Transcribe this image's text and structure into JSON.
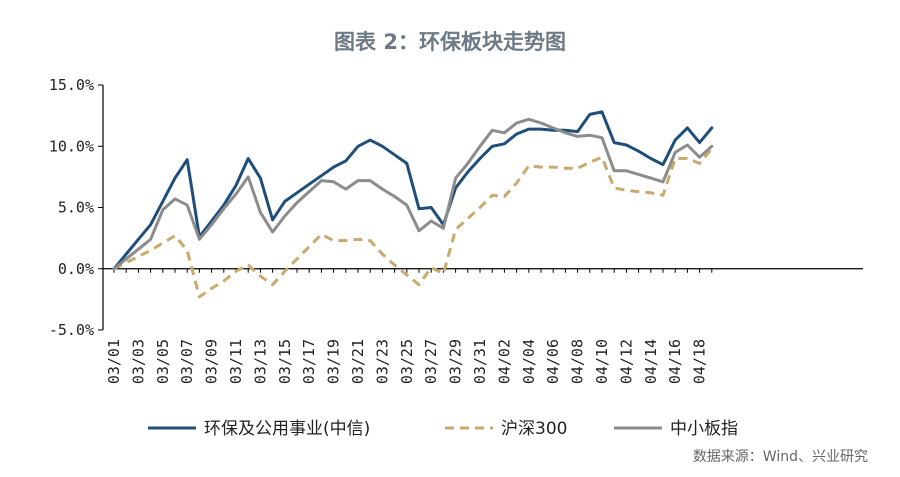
{
  "chart_data": {
    "type": "line",
    "title": "图表 2：环保板块走势图",
    "source": "数据来源：Wind、兴业研究",
    "ylim": [
      -5,
      15
    ],
    "yticks": [
      -5,
      0,
      5,
      10,
      15
    ],
    "ytick_labels": [
      "-5.0%",
      "0.0%",
      "5.0%",
      "10.0%",
      "15.0%"
    ],
    "x": [
      "03/01",
      "03/02",
      "03/03",
      "03/04",
      "03/05",
      "03/06",
      "03/07",
      "03/08",
      "03/09",
      "03/10",
      "03/11",
      "03/12",
      "03/13",
      "03/14",
      "03/15",
      "03/16",
      "03/17",
      "03/18",
      "03/19",
      "03/20",
      "03/21",
      "03/22",
      "03/23",
      "03/24",
      "03/25",
      "03/26",
      "03/27",
      "03/28",
      "03/29",
      "03/30",
      "03/31",
      "04/01",
      "04/02",
      "04/03",
      "04/04",
      "04/05",
      "04/06",
      "04/07",
      "04/08",
      "04/09",
      "04/10",
      "04/11",
      "04/12",
      "04/13",
      "04/14",
      "04/15",
      "04/16",
      "04/17",
      "04/18",
      "04/19"
    ],
    "x_tick_labels": [
      "03/01",
      "03/03",
      "03/05",
      "03/07",
      "03/09",
      "03/11",
      "03/13",
      "03/15",
      "03/17",
      "03/19",
      "03/21",
      "03/23",
      "03/25",
      "03/27",
      "03/29",
      "03/31",
      "04/02",
      "04/04",
      "04/06",
      "04/08",
      "04/10",
      "04/12",
      "04/14",
      "04/16",
      "04/18"
    ],
    "series": [
      {
        "name": "环保及公用事业(中信)",
        "color": "#1f4e79",
        "dash": "solid",
        "values": [
          0.0,
          1.2,
          2.4,
          3.6,
          5.5,
          7.4,
          8.9,
          2.6,
          3.9,
          5.2,
          6.8,
          9.0,
          7.4,
          4.0,
          5.5,
          6.2,
          6.9,
          7.6,
          8.3,
          8.8,
          10.0,
          10.5,
          10.0,
          9.3,
          8.6,
          4.9,
          5.0,
          3.6,
          6.6,
          7.9,
          9.0,
          10.0,
          10.2,
          11.0,
          11.4,
          11.4,
          11.3,
          11.3,
          11.2,
          12.6,
          12.8,
          10.3,
          10.1,
          9.6,
          9.0,
          8.5,
          10.5,
          11.5,
          10.3,
          11.5
        ]
      },
      {
        "name": "沪深300",
        "color": "#c8aa6e",
        "dash": "dashed",
        "values": [
          0.0,
          0.5,
          1.0,
          1.5,
          2.1,
          2.7,
          1.5,
          -2.3,
          -1.6,
          -1.0,
          -0.2,
          0.3,
          -0.6,
          -1.3,
          -0.2,
          0.8,
          1.8,
          2.8,
          2.3,
          2.3,
          2.4,
          2.3,
          1.2,
          0.3,
          -0.5,
          -1.3,
          0.1,
          -0.4,
          3.2,
          4.1,
          5.0,
          6.0,
          5.9,
          7.0,
          8.4,
          8.3,
          8.3,
          8.2,
          8.2,
          8.7,
          9.1,
          6.6,
          6.4,
          6.3,
          6.2,
          6.0,
          9.0,
          9.0,
          8.6,
          9.8
        ]
      },
      {
        "name": "中小板指",
        "color": "#8c8c8c",
        "dash": "solid",
        "values": [
          0.0,
          0.8,
          1.6,
          2.4,
          4.8,
          5.7,
          5.2,
          2.4,
          3.6,
          4.9,
          6.1,
          7.5,
          4.6,
          3.0,
          4.3,
          5.4,
          6.3,
          7.2,
          7.1,
          6.5,
          7.2,
          7.2,
          6.5,
          5.9,
          5.2,
          3.1,
          3.9,
          3.3,
          7.4,
          8.6,
          10.0,
          11.3,
          11.1,
          11.9,
          12.2,
          11.9,
          11.5,
          11.1,
          10.8,
          10.9,
          10.7,
          8.0,
          8.0,
          7.7,
          7.4,
          7.1,
          9.5,
          10.1,
          9.1,
          10.0
        ]
      }
    ]
  }
}
